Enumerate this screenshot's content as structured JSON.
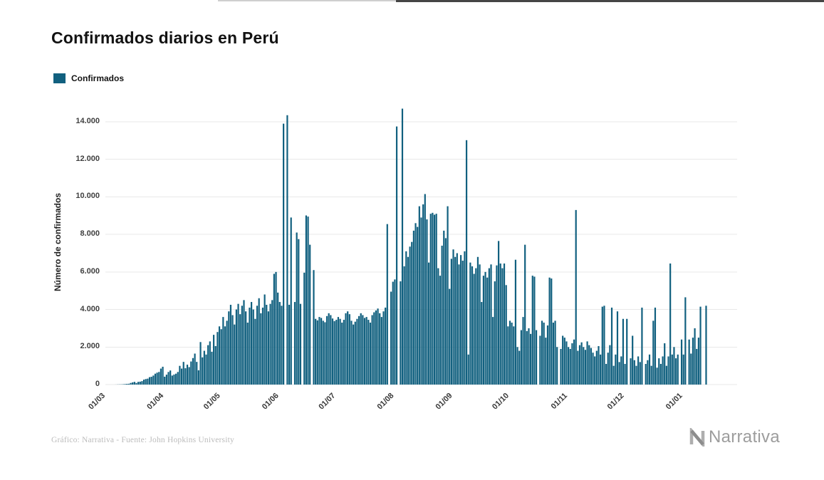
{
  "header": {
    "title": "Confirmados diarios en Perú"
  },
  "legend": {
    "items": [
      {
        "label": "Confirmados",
        "color": "#11607f"
      }
    ]
  },
  "footer": {
    "caption": "Gráfico: Narrativa - Fuente: John Hopkins University",
    "brand": "Narrativa"
  },
  "chart_data": {
    "type": "bar",
    "title": "Confirmados diarios en Perú",
    "xlabel": "",
    "ylabel": "Número de confirmados",
    "series_name": "Confirmados",
    "bar_color": "#11607f",
    "grid": true,
    "grid_color": "#e8e8e8",
    "legend_position": "top-left",
    "ylim": [
      0,
      14800
    ],
    "x_unit": "day",
    "y_ticks": [
      {
        "label": "0",
        "value": 0
      },
      {
        "label": "2.000",
        "value": 2000
      },
      {
        "label": "4.000",
        "value": 4000
      },
      {
        "label": "6.000",
        "value": 6000
      },
      {
        "label": "8.000",
        "value": 8000
      },
      {
        "label": "10.000",
        "value": 10000
      },
      {
        "label": "12.000",
        "value": 12000
      },
      {
        "label": "14.000",
        "value": 14000
      }
    ],
    "x_ticks": [
      {
        "label": "01/03",
        "index": 0
      },
      {
        "label": "01/04",
        "index": 31
      },
      {
        "label": "01/05",
        "index": 61
      },
      {
        "label": "01/06",
        "index": 92
      },
      {
        "label": "01/07",
        "index": 122
      },
      {
        "label": "01/08",
        "index": 153
      },
      {
        "label": "01/09",
        "index": 184
      },
      {
        "label": "01/10",
        "index": 214
      },
      {
        "label": "01/11",
        "index": 245
      },
      {
        "label": "01/12",
        "index": 275
      },
      {
        "label": "01/01",
        "index": 306
      }
    ],
    "values": [
      0,
      0,
      0,
      0,
      0,
      2,
      6,
      9,
      11,
      17,
      28,
      38,
      43,
      86,
      117,
      145,
      86,
      145,
      155,
      184,
      263,
      295,
      316,
      395,
      416,
      480,
      580,
      635,
      671,
      852,
      950,
      420,
      528,
      671,
      750,
      480,
      535,
      580,
      671,
      997,
      852,
      1208,
      870,
      1060,
      930,
      1230,
      1413,
      1650,
      1208,
      760,
      2265,
      1450,
      1800,
      1600,
      2100,
      2300,
      1750,
      2650,
      2050,
      2800,
      3100,
      2950,
      3600,
      3100,
      3400,
      3900,
      4250,
      3700,
      3200,
      4000,
      4300,
      3750,
      4200,
      4500,
      3900,
      3300,
      4100,
      4400,
      4000,
      3500,
      4200,
      4600,
      3800,
      4100,
      4800,
      4250,
      3900,
      4300,
      4500,
      5900,
      6000,
      4900,
      4400,
      4200,
      13900,
      0,
      14350,
      4250,
      8900,
      0,
      4400,
      8100,
      7750,
      4300,
      0,
      5960,
      9010,
      8950,
      7450,
      0,
      6100,
      3500,
      3420,
      3600,
      3550,
      3400,
      3320,
      3650,
      3800,
      3700,
      3520,
      3380,
      3450,
      3600,
      3500,
      3300,
      3450,
      3800,
      3900,
      3750,
      3400,
      3200,
      3350,
      3500,
      3650,
      3800,
      3700,
      3550,
      3600,
      3450,
      3300,
      3700,
      3850,
      3950,
      4050,
      3800,
      3600,
      3900,
      4100,
      8550,
      0,
      4950,
      5480,
      5600,
      13750,
      0,
      5500,
      14700,
      6300,
      7100,
      6800,
      7350,
      7600,
      8200,
      8600,
      8400,
      9500,
      8900,
      9600,
      10150,
      8800,
      6500,
      9100,
      9150,
      9050,
      9100,
      6200,
      5800,
      7400,
      8200,
      7800,
      9500,
      5100,
      6700,
      7200,
      6800,
      7000,
      6400,
      6900,
      6600,
      7100,
      13020,
      1600,
      6500,
      6300,
      5900,
      6200,
      6800,
      6400,
      4400,
      5800,
      6000,
      5700,
      6200,
      6400,
      3600,
      5500,
      6350,
      7650,
      6450,
      6200,
      6450,
      5300,
      3100,
      3400,
      3300,
      3100,
      6650,
      2000,
      1800,
      2900,
      3600,
      7450,
      2850,
      3000,
      2700,
      5800,
      5750,
      2900,
      0,
      2600,
      3400,
      3300,
      2500,
      3150,
      5700,
      5650,
      3300,
      3400,
      2000,
      0,
      1900,
      2600,
      2500,
      2300,
      2000,
      1900,
      2200,
      2400,
      9300,
      1800,
      2100,
      2250,
      2000,
      1850,
      2300,
      2100,
      1950,
      1700,
      1500,
      1800,
      2050,
      1600,
      4150,
      4200,
      1100,
      1700,
      2100,
      4100,
      1000,
      1600,
      3900,
      1200,
      1500,
      3500,
      1100,
      3500,
      0,
      1400,
      2600,
      1300,
      1000,
      1500,
      1200,
      4100,
      0,
      1100,
      1300,
      1600,
      1000,
      3400,
      4100,
      900,
      1400,
      1100,
      1500,
      2200,
      1000,
      1500,
      6450,
      1600,
      2000,
      1400,
      1600,
      0,
      2400,
      1600,
      4650,
      0,
      2400,
      1650,
      2500,
      3000,
      1900,
      2500,
      4150,
      0,
      0,
      4200
    ]
  }
}
